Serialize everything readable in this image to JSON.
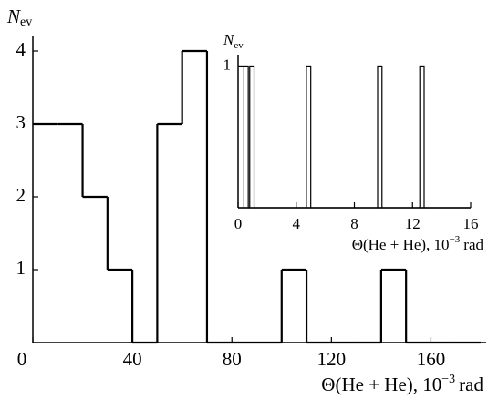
{
  "chart_data": [
    {
      "type": "histogram",
      "ylabel": "N",
      "ylabel_sub": "ev",
      "xlabel": "Θ(He + He), 10",
      "xlabel_sup": "−3",
      "xlabel_unit": "rad",
      "bins": [
        0,
        10,
        20,
        30,
        40,
        50,
        60,
        70,
        80,
        90,
        100,
        110,
        120,
        130,
        140,
        150,
        160,
        170,
        180
      ],
      "values": [
        3,
        3,
        2,
        1,
        0,
        3,
        4,
        0,
        0,
        0,
        1,
        0,
        0,
        0,
        1,
        0,
        0,
        0
      ],
      "color": "#000000",
      "xlim": [
        0,
        180
      ],
      "xticks": [
        0,
        40,
        80,
        120,
        160
      ],
      "ylim": [
        0,
        4.2
      ],
      "yticks": [
        1,
        2,
        3,
        4
      ]
    },
    {
      "type": "histogram",
      "ylabel": "N",
      "ylabel_sub": "ev",
      "xlabel": "Θ(He + He), 10",
      "xlabel_sup": "−3",
      "xlabel_unit": "rad",
      "bins": [
        0,
        0.4,
        0.7,
        0.8,
        1.1,
        4.7,
        5.0,
        9.6,
        9.9,
        12.5,
        12.8,
        16
      ],
      "values": [
        0,
        1,
        0,
        1,
        0,
        1,
        0,
        1,
        0,
        1,
        0
      ],
      "color": "#000000",
      "xlim": [
        0,
        16
      ],
      "xticks": [
        0,
        4,
        8,
        12,
        16
      ],
      "ylim": [
        0,
        1.08
      ],
      "yticks": [
        1
      ]
    }
  ]
}
